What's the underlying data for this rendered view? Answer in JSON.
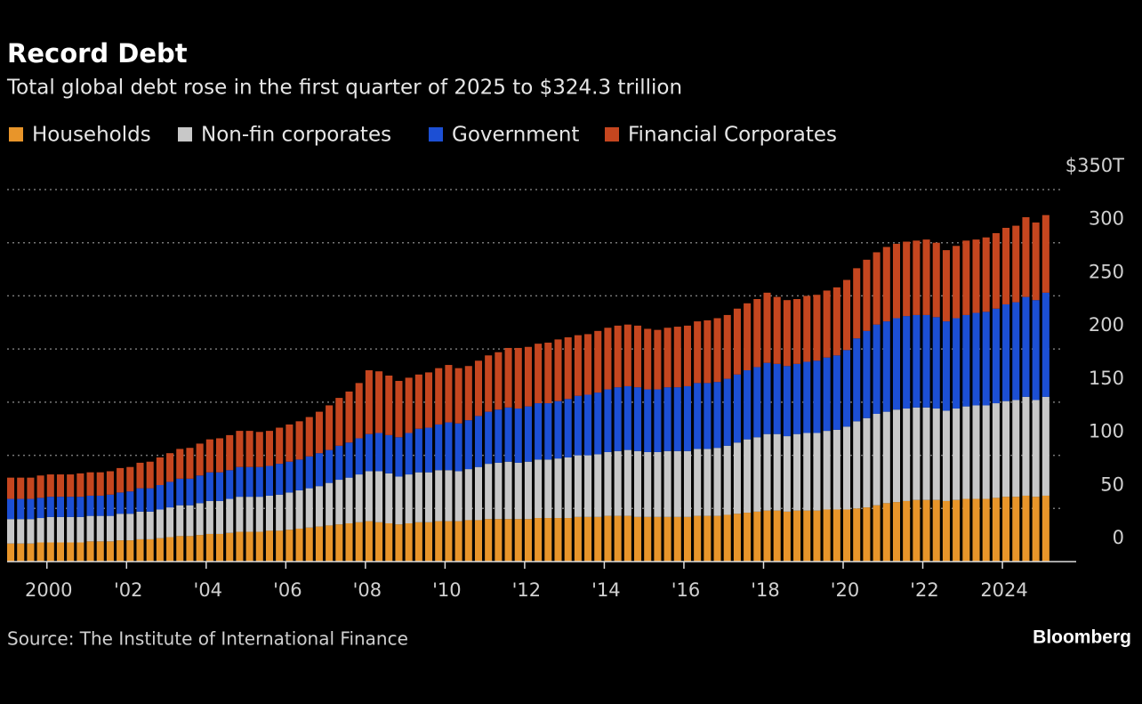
{
  "chart_data": {
    "type": "bar",
    "stacked": true,
    "title": "Record Debt",
    "subtitle": "Total global debt rose in the first quarter of 2025 to $324.3 trillion",
    "source": "Source: The Institute of International Finance",
    "brand": "Bloomberg",
    "categories": [
      null,
      null,
      null,
      null,
      "2000",
      null,
      null,
      null,
      null,
      null,
      null,
      null,
      "'02",
      null,
      null,
      null,
      null,
      null,
      null,
      null,
      "'04",
      null,
      null,
      null,
      null,
      null,
      null,
      null,
      "'06",
      null,
      null,
      null,
      null,
      null,
      null,
      null,
      "'08",
      null,
      null,
      null,
      null,
      null,
      null,
      null,
      "'10",
      null,
      null,
      null,
      null,
      null,
      null,
      null,
      "'12",
      null,
      null,
      null,
      null,
      null,
      null,
      null,
      "'14",
      null,
      null,
      null,
      null,
      null,
      null,
      null,
      "'16",
      null,
      null,
      null,
      null,
      null,
      null,
      null,
      "'18",
      null,
      null,
      null,
      null,
      null,
      null,
      null,
      "'20",
      null,
      null,
      null,
      null,
      null,
      null,
      null,
      "'22",
      null,
      null,
      null,
      null,
      null,
      null,
      null,
      "2024",
      null,
      null,
      null,
      null
    ],
    "series": [
      {
        "name": "Households",
        "color": "#e8952a",
        "values": [
          17,
          17,
          17,
          18,
          18,
          18,
          18,
          18,
          19,
          19,
          19,
          20,
          20,
          21,
          21,
          22,
          23,
          24,
          24,
          25,
          26,
          26,
          27,
          28,
          28,
          28,
          29,
          29,
          30,
          31,
          32,
          33,
          34,
          35,
          36,
          37,
          38,
          37,
          36,
          35,
          36,
          37,
          37,
          38,
          38,
          38,
          39,
          39,
          40,
          40,
          40,
          40,
          40,
          41,
          41,
          41,
          41,
          42,
          42,
          42,
          43,
          43,
          43,
          42,
          42,
          42,
          42,
          42,
          42,
          43,
          43,
          43,
          44,
          45,
          46,
          47,
          48,
          48,
          47,
          48,
          48,
          48,
          49,
          49,
          49,
          50,
          51,
          53,
          55,
          56,
          57,
          58,
          58,
          58,
          57,
          58,
          59,
          59,
          59,
          60,
          61,
          61,
          62,
          61,
          62
        ]
      },
      {
        "name": "Non-fin corporates",
        "color": "#c8c8c8",
        "values": [
          23,
          23,
          23,
          23,
          24,
          24,
          24,
          24,
          24,
          24,
          24,
          25,
          25,
          26,
          26,
          27,
          28,
          29,
          29,
          30,
          31,
          31,
          32,
          33,
          33,
          33,
          33,
          34,
          35,
          36,
          37,
          38,
          40,
          42,
          43,
          45,
          47,
          48,
          47,
          45,
          46,
          47,
          47,
          48,
          48,
          47,
          48,
          50,
          52,
          53,
          54,
          53,
          54,
          55,
          55,
          56,
          57,
          58,
          58,
          59,
          60,
          61,
          62,
          62,
          61,
          61,
          62,
          62,
          62,
          63,
          63,
          64,
          65,
          67,
          69,
          70,
          72,
          72,
          71,
          72,
          73,
          73,
          74,
          75,
          78,
          82,
          84,
          86,
          86,
          87,
          87,
          87,
          87,
          86,
          85,
          86,
          87,
          88,
          88,
          89,
          90,
          91,
          93,
          91,
          93
        ]
      },
      {
        "name": "Government",
        "color": "#1c4fd4",
        "values": [
          19,
          19,
          19,
          19,
          19,
          19,
          19,
          19,
          19,
          19,
          20,
          20,
          21,
          22,
          22,
          23,
          24,
          25,
          25,
          26,
          27,
          27,
          27,
          28,
          28,
          28,
          28,
          29,
          29,
          29,
          30,
          31,
          31,
          32,
          33,
          34,
          35,
          36,
          36,
          37,
          39,
          41,
          42,
          43,
          45,
          45,
          46,
          48,
          49,
          50,
          51,
          51,
          52,
          53,
          53,
          54,
          55,
          56,
          57,
          58,
          59,
          60,
          60,
          60,
          59,
          59,
          60,
          60,
          61,
          62,
          62,
          62,
          63,
          64,
          65,
          66,
          67,
          66,
          66,
          66,
          67,
          68,
          69,
          70,
          72,
          78,
          82,
          84,
          85,
          86,
          87,
          87,
          87,
          86,
          84,
          85,
          86,
          87,
          88,
          89,
          91,
          92,
          94,
          94,
          98
        ]
      },
      {
        "name": "Financial Corporates",
        "color": "#c5461f",
        "values": [
          20,
          20,
          20,
          21,
          21,
          21,
          21,
          22,
          22,
          22,
          22,
          23,
          23,
          24,
          25,
          26,
          27,
          28,
          29,
          30,
          31,
          32,
          33,
          34,
          34,
          33,
          33,
          34,
          35,
          36,
          37,
          39,
          42,
          45,
          48,
          52,
          60,
          58,
          56,
          53,
          52,
          51,
          52,
          53,
          54,
          52,
          51,
          52,
          53,
          54,
          56,
          57,
          56,
          56,
          57,
          58,
          58,
          57,
          57,
          58,
          58,
          58,
          58,
          58,
          57,
          56,
          56,
          57,
          57,
          58,
          59,
          60,
          60,
          62,
          63,
          64,
          66,
          63,
          62,
          61,
          62,
          62,
          63,
          64,
          66,
          66,
          67,
          68,
          70,
          70,
          70,
          70,
          71,
          70,
          67,
          68,
          70,
          69,
          70,
          71,
          72,
          72,
          75,
          73,
          73
        ]
      }
    ],
    "ylim": [
      0,
      350
    ],
    "yticks": [
      0,
      50,
      100,
      150,
      200,
      250,
      300,
      {
        "value": 350,
        "label": "$350T"
      }
    ],
    "grid": true
  }
}
